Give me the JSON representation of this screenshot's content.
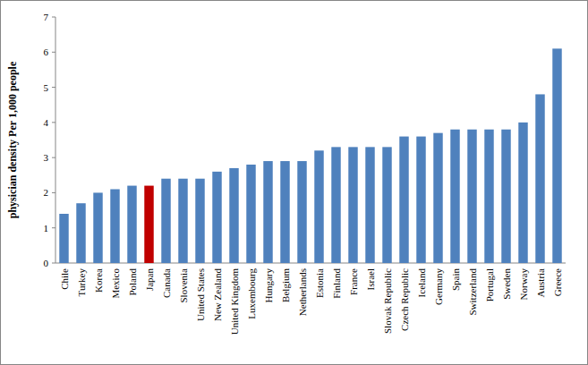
{
  "chart_data": {
    "type": "bar",
    "y_label": "physician density Per 1,000 people",
    "categories": [
      "Chile",
      "Turkey",
      "Korea",
      "Mexico",
      "Poland",
      "Japan",
      "Canada",
      "Slovenia",
      "United States",
      "New Zealand",
      "United Kingdom",
      "Luxembourg",
      "Hungary",
      "Belgium",
      "Netherlands",
      "Estonia",
      "Finland",
      "France",
      "Israel",
      "Slovak Republic",
      "Czech Republic",
      "Iceland",
      "Germany",
      "Spain",
      "Switzerland",
      "Portugal",
      "Sweden",
      "Norway",
      "Austria",
      "Greece"
    ],
    "values": [
      1.4,
      1.7,
      2.0,
      2.1,
      2.2,
      2.2,
      2.4,
      2.4,
      2.4,
      2.6,
      2.7,
      2.8,
      2.9,
      2.9,
      2.9,
      3.2,
      3.3,
      3.3,
      3.3,
      3.3,
      3.6,
      3.6,
      3.7,
      3.8,
      3.8,
      3.8,
      3.8,
      4.0,
      4.8,
      6.1
    ],
    "colors": [
      "#4f81bd",
      "#4f81bd",
      "#4f81bd",
      "#4f81bd",
      "#4f81bd",
      "#c00000",
      "#4f81bd",
      "#4f81bd",
      "#4f81bd",
      "#4f81bd",
      "#4f81bd",
      "#4f81bd",
      "#4f81bd",
      "#4f81bd",
      "#4f81bd",
      "#4f81bd",
      "#4f81bd",
      "#4f81bd",
      "#4f81bd",
      "#4f81bd",
      "#4f81bd",
      "#4f81bd",
      "#4f81bd",
      "#4f81bd",
      "#4f81bd",
      "#4f81bd",
      "#4f81bd",
      "#4f81bd",
      "#4f81bd",
      "#4f81bd"
    ],
    "ylim": [
      0,
      7
    ],
    "yticks": [
      0,
      1,
      2,
      3,
      4,
      5,
      6,
      7
    ],
    "grid": false
  }
}
